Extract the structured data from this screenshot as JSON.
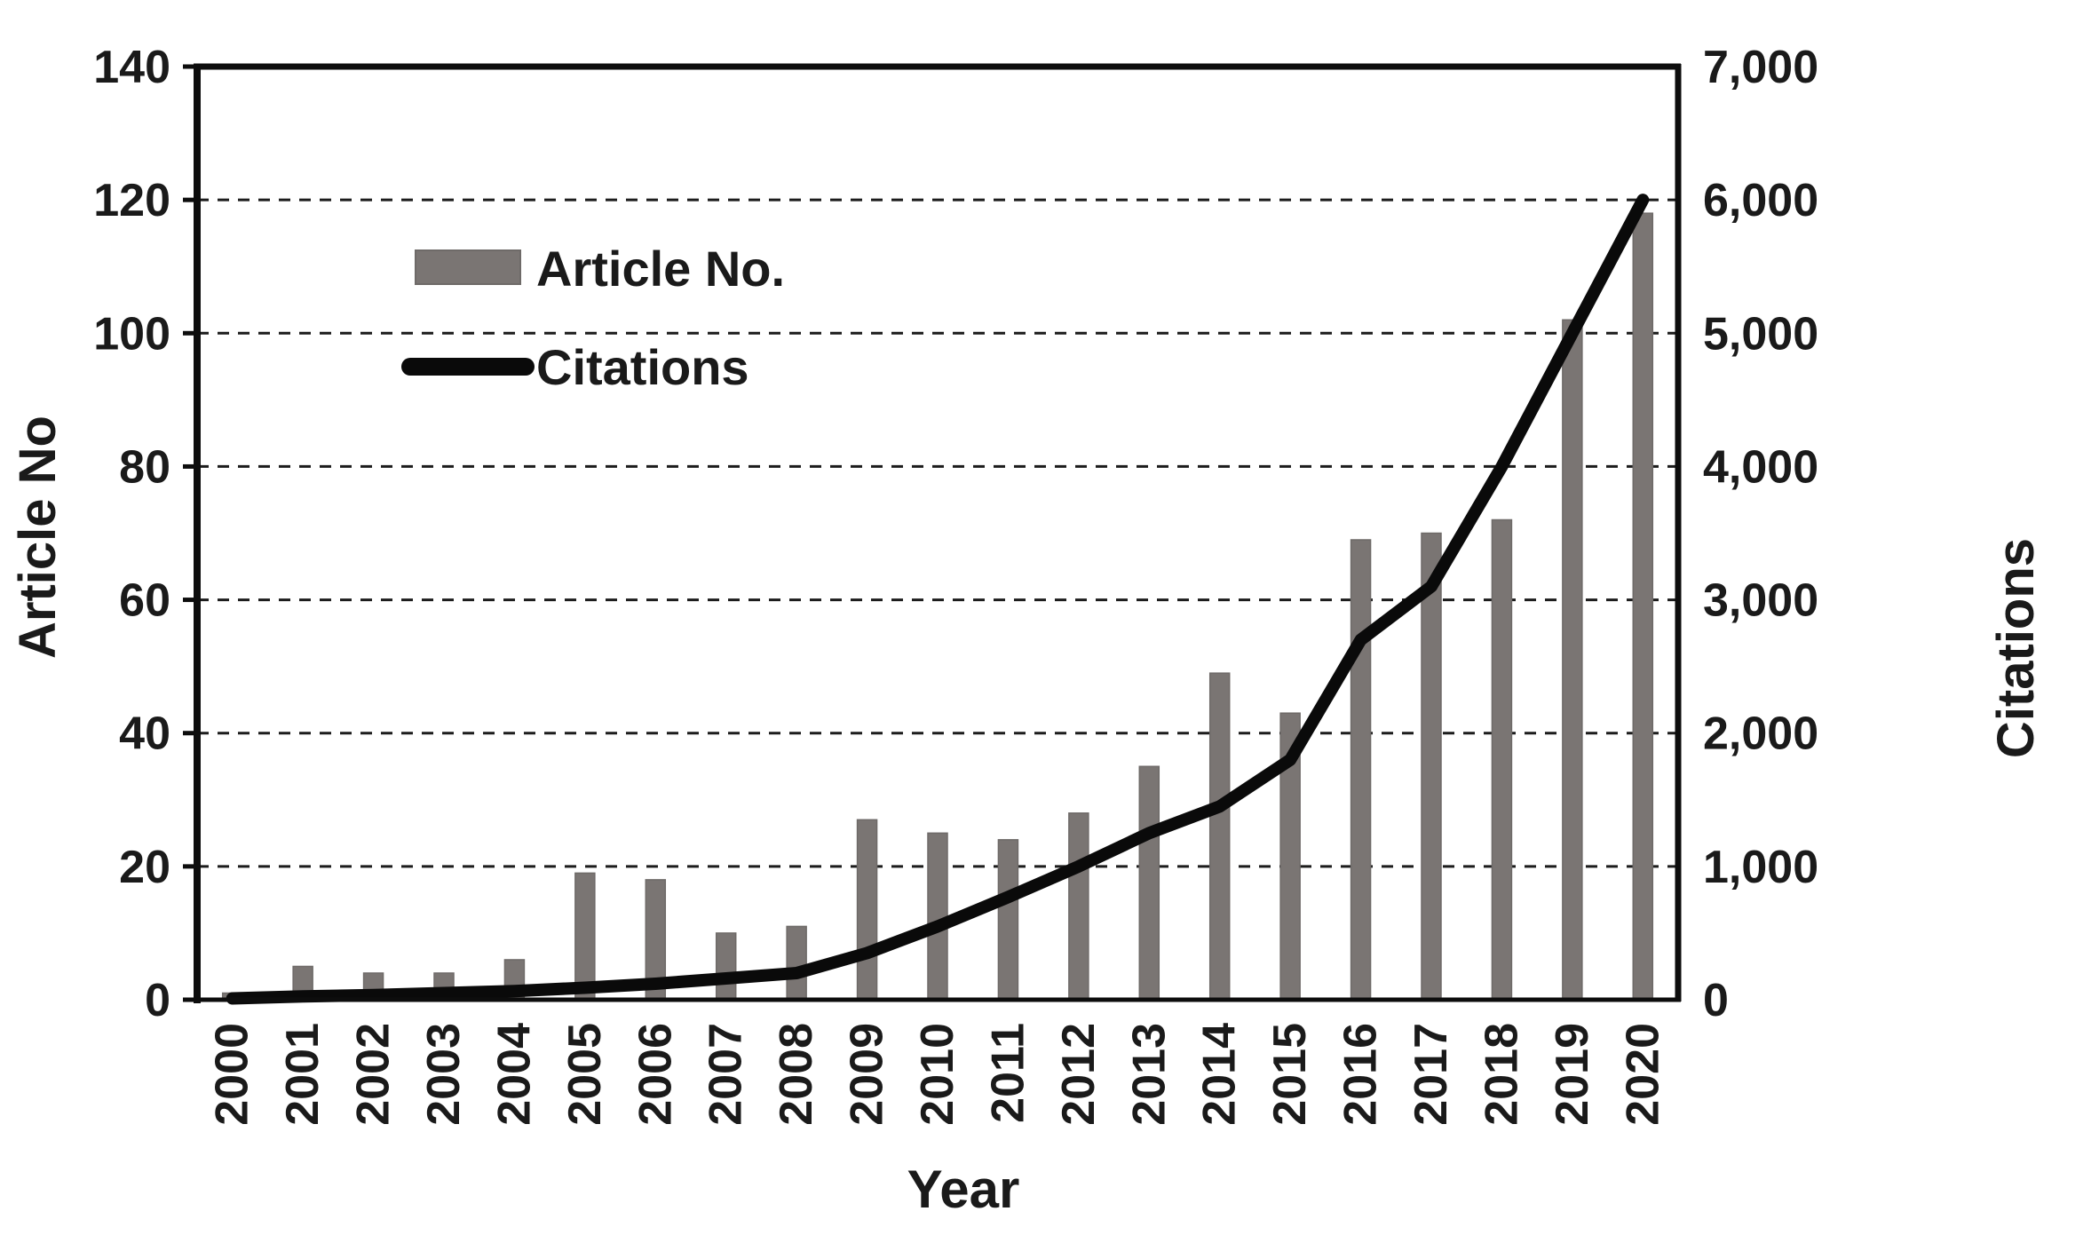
{
  "figure": {
    "background": "#ffffff",
    "x_axis_title": "Year",
    "left_axis_title": "Article No",
    "right_axis_title": "Citations",
    "legend": {
      "bar_label": "Article No.",
      "line_label": "Citations"
    },
    "colors": {
      "bar_fill": "#7a7573",
      "bar_stroke": "#6e6a68",
      "line_color": "#0a0a0a",
      "frame_color": "#0d0d0d",
      "gridline_color": "#1c1c1c",
      "text_color": "#1a1a1a"
    }
  },
  "chart_data": {
    "type": "combo-bar-line",
    "categories": [
      "2000",
      "2001",
      "2002",
      "2003",
      "2004",
      "2005",
      "2006",
      "2007",
      "2008",
      "2009",
      "2010",
      "2011",
      "2012",
      "2013",
      "2014",
      "2015",
      "2016",
      "2017",
      "2018",
      "2019",
      "2020"
    ],
    "series": [
      {
        "name": "Article No.",
        "type": "bar",
        "axis": "left",
        "values": [
          1,
          5,
          4,
          4,
          6,
          19,
          18,
          10,
          11,
          27,
          25,
          24,
          28,
          35,
          49,
          43,
          69,
          70,
          72,
          102,
          118
        ]
      },
      {
        "name": "Citations",
        "type": "line",
        "axis": "right",
        "values": [
          10,
          25,
          35,
          50,
          65,
          90,
          120,
          160,
          200,
          350,
          550,
          770,
          1000,
          1250,
          1450,
          1800,
          2700,
          3100,
          4000,
          5000,
          6000
        ]
      }
    ],
    "left_axis": {
      "label": "Article No",
      "min": 0,
      "max": 140,
      "tick_step": 20,
      "ticks_top_to_bottom": [
        "140",
        "120",
        "100",
        "80",
        "60",
        "40",
        "20",
        "0"
      ]
    },
    "right_axis": {
      "label": "Citations",
      "min": 0,
      "max": 7000,
      "tick_step": 1000,
      "ticks_top_to_bottom": [
        "7,000",
        "6,000",
        "5,000",
        "4,000",
        "3,000",
        "2,000",
        "1,000",
        "0"
      ]
    },
    "x_axis": {
      "label": "Year"
    },
    "grid": "horizontal-dashed",
    "legend_position": "inside-top-left"
  }
}
